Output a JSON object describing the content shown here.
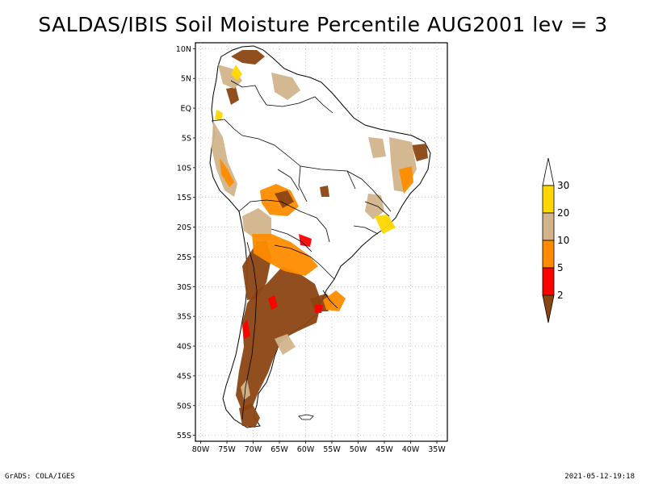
{
  "title": "SALDAS/IBIS Soil Moisture Percentile AUG2001 lev = 3",
  "footer": {
    "left": "GrADS: COLA/IGES",
    "right": "2021-05-12-19:18"
  },
  "axes": {
    "lat_ticks": [
      "10N",
      "5N",
      "EQ",
      "5S",
      "10S",
      "15S",
      "20S",
      "25S",
      "30S",
      "35S",
      "40S",
      "45S",
      "50S",
      "55S"
    ],
    "lon_ticks": [
      "80W",
      "75W",
      "70W",
      "65W",
      "60W",
      "55W",
      "50W",
      "45W",
      "40W",
      "35W"
    ],
    "lat_range": [
      -56,
      11
    ],
    "lon_range": [
      -81,
      -33
    ],
    "grid": true
  },
  "legend": {
    "position": "right",
    "bins": [
      {
        "label": "2",
        "color": "#8b4513"
      },
      {
        "label": "5",
        "color": "#ff0000"
      },
      {
        "label": "10",
        "color": "#ff8c00"
      },
      {
        "label": "20",
        "color": "#d2b48c"
      },
      {
        "label": "30",
        "color": "#ffd700"
      }
    ],
    "top_color": "#ffffff"
  },
  "colors": {
    "lt2": "#8b4513",
    "2to5": "#ff0000",
    "5to10": "#ff8c00",
    "10to20": "#d2b48c",
    "20to30": "#ffd700"
  }
}
